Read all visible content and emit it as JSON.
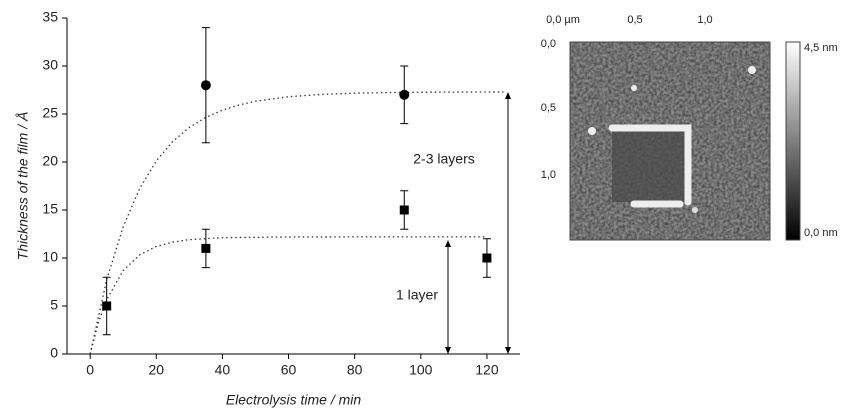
{
  "chart_data": {
    "type": "scatter",
    "x_label": "Electrolysis time / min",
    "y_label": "Thickness of the film / Å",
    "xlim": [
      -7,
      130
    ],
    "ylim": [
      0,
      35
    ],
    "xticks": [
      0,
      20,
      40,
      60,
      80,
      100,
      120
    ],
    "yticks": [
      0,
      5,
      10,
      15,
      20,
      25,
      30,
      35
    ],
    "series": [
      {
        "marker": "circle",
        "color": "#000000",
        "x": [
          35,
          95
        ],
        "values": [
          28,
          27
        ],
        "errors": [
          6,
          3
        ]
      },
      {
        "marker": "square",
        "color": "#000000",
        "x": [
          5,
          35,
          95,
          120
        ],
        "values": [
          5,
          11,
          15,
          10
        ],
        "errors": [
          3,
          2,
          2,
          2
        ]
      }
    ],
    "fits": [
      {
        "color": "#333333",
        "x": [
          0,
          5,
          10,
          15,
          20,
          25,
          30,
          35,
          40,
          45,
          50,
          60,
          70,
          80,
          90,
          100,
          110,
          125
        ],
        "values": [
          0,
          7.74,
          13.28,
          17.26,
          20.1,
          22.14,
          23.6,
          24.65,
          25.4,
          25.94,
          26.33,
          26.8,
          27.04,
          27.17,
          27.23,
          27.27,
          27.28,
          27.3
        ]
      },
      {
        "color": "#333333",
        "x": [
          0,
          2.5,
          5,
          10,
          15,
          20,
          25,
          30,
          40,
          60,
          80,
          100,
          120
        ],
        "values": [
          0,
          3.27,
          5.67,
          8.7,
          10.33,
          11.2,
          11.66,
          11.91,
          12.12,
          12.19,
          12.2,
          12.2,
          12.2
        ]
      }
    ],
    "annotations": [
      "2-3 layers",
      "1 layer"
    ]
  },
  "afm_image": {
    "x_labels": [
      "0,0 µm",
      "0,5",
      "1,0"
    ],
    "y_labels": [
      "0,0",
      "0,5",
      "1,0"
    ],
    "colorbar_labels": [
      "4,5 nm",
      "0,0 nm"
    ]
  }
}
